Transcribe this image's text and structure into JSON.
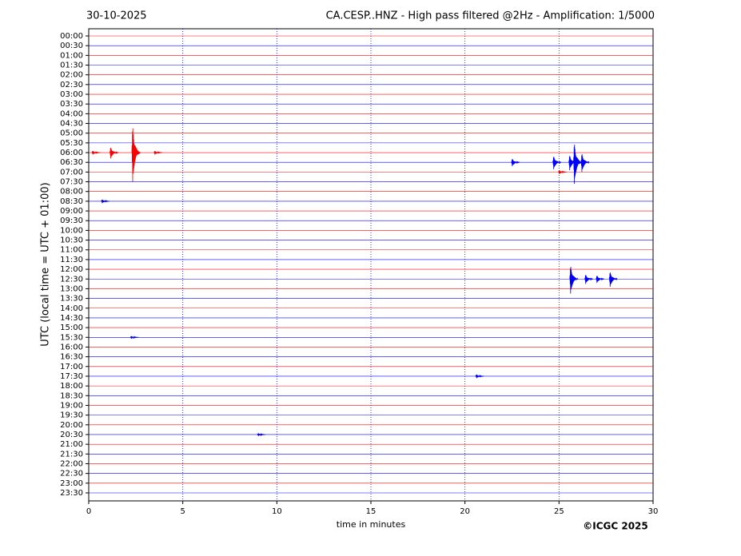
{
  "chart_data": {
    "type": "helicorder",
    "date": "30-10-2025",
    "title": "CA.CESP..HNZ - High pass filtered @2Hz - Amplification: 1/5000",
    "ylabel": "UTC (local time = UTC + 01:00)",
    "xlabel": "time in minutes",
    "copyright": "©ICGC 2025",
    "categories": [
      "00:00",
      "00:30",
      "01:00",
      "01:30",
      "02:00",
      "02:30",
      "03:00",
      "03:30",
      "04:00",
      "04:30",
      "05:00",
      "05:30",
      "06:00",
      "06:30",
      "07:00",
      "07:30",
      "08:00",
      "08:30",
      "09:00",
      "09:30",
      "10:00",
      "10:30",
      "11:00",
      "11:30",
      "12:00",
      "12:30",
      "13:00",
      "13:30",
      "14:00",
      "14:30",
      "15:00",
      "15:30",
      "16:00",
      "16:30",
      "17:00",
      "17:30",
      "18:00",
      "18:30",
      "19:00",
      "19:30",
      "20:00",
      "20:30",
      "21:00",
      "21:30",
      "22:00",
      "22:30",
      "23:00",
      "23:30"
    ],
    "row_colors": [
      "#ff0000",
      "#0000ff"
    ],
    "xlim": [
      0,
      30
    ],
    "xticks": [
      0,
      5,
      10,
      15,
      20,
      25,
      30
    ],
    "grid": true,
    "events": [
      {
        "row": 12,
        "x": 0.3,
        "amplitude": 0.2
      },
      {
        "row": 12,
        "x": 1.25,
        "amplitude": 0.6
      },
      {
        "row": 12,
        "x": 2.42,
        "amplitude": 3.0
      },
      {
        "row": 12,
        "x": 3.6,
        "amplitude": 0.2
      },
      {
        "row": 13,
        "x": 22.6,
        "amplitude": 0.4
      },
      {
        "row": 13,
        "x": 24.8,
        "amplitude": 0.7
      },
      {
        "row": 13,
        "x": 25.65,
        "amplitude": 0.8
      },
      {
        "row": 13,
        "x": 25.9,
        "amplitude": 2.2
      },
      {
        "row": 13,
        "x": 26.3,
        "amplitude": 1.0
      },
      {
        "row": 14,
        "x": 25.1,
        "amplitude": 0.2
      },
      {
        "row": 17,
        "x": 0.8,
        "amplitude": 0.2
      },
      {
        "row": 25,
        "x": 25.7,
        "amplitude": 1.5
      },
      {
        "row": 25,
        "x": 26.5,
        "amplitude": 0.5
      },
      {
        "row": 25,
        "x": 27.1,
        "amplitude": 0.4
      },
      {
        "row": 25,
        "x": 27.8,
        "amplitude": 0.8
      },
      {
        "row": 31,
        "x": 2.35,
        "amplitude": 0.15
      },
      {
        "row": 35,
        "x": 20.7,
        "amplitude": 0.2
      },
      {
        "row": 41,
        "x": 9.1,
        "amplitude": 0.15
      }
    ]
  }
}
